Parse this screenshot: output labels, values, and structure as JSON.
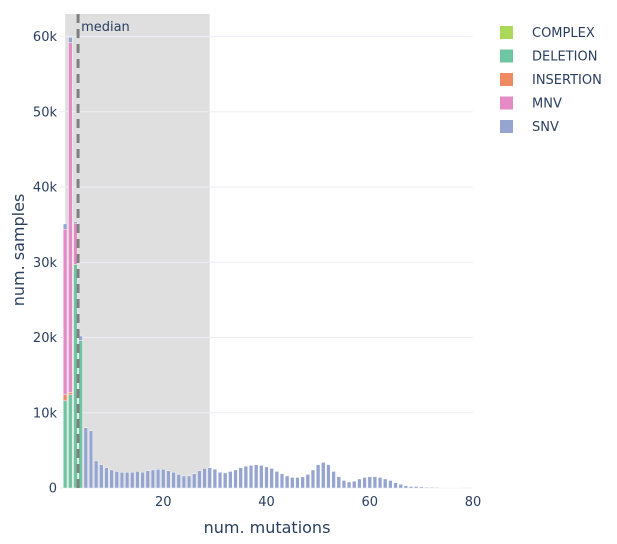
{
  "chart_data": {
    "type": "bar",
    "barmode": "stack",
    "xlabel": "num. mutations",
    "ylabel": "num. samples",
    "xlim": [
      0,
      80
    ],
    "ylim": [
      0,
      63000
    ],
    "x_ticks": [
      20,
      40,
      60,
      80
    ],
    "y_ticks": [
      0,
      10000,
      20000,
      30000,
      40000,
      50000,
      60000
    ],
    "y_tick_labels": [
      "0",
      "10k",
      "20k",
      "30k",
      "40k",
      "50k",
      "60k"
    ],
    "x_tick_labels": [
      "20",
      "40",
      "60",
      "80"
    ],
    "grid": true,
    "legend_position": "top-right",
    "shaded_region": {
      "x0": 1,
      "x1": 29
    },
    "median": {
      "x": 3.5,
      "label": "median"
    },
    "x": [
      1,
      2,
      3,
      4,
      5,
      6,
      7,
      8,
      9,
      10,
      11,
      12,
      13,
      14,
      15,
      16,
      17,
      18,
      19,
      20,
      21,
      22,
      23,
      24,
      25,
      26,
      27,
      28,
      29,
      30,
      31,
      32,
      33,
      34,
      35,
      36,
      37,
      38,
      39,
      40,
      41,
      42,
      43,
      44,
      45,
      46,
      47,
      48,
      49,
      50,
      51,
      52,
      53,
      54,
      55,
      56,
      57,
      58,
      59,
      60,
      61,
      62,
      63,
      64,
      65,
      66,
      67,
      68,
      69,
      70,
      71,
      72,
      73,
      74,
      75,
      76,
      77,
      78,
      79
    ],
    "series": [
      {
        "name": "SNV",
        "color": "#95a5d0",
        "values": [
          700,
          700,
          200,
          600,
          8000,
          7600,
          3600,
          3100,
          2700,
          2400,
          2200,
          2100,
          2100,
          2100,
          2200,
          2100,
          2300,
          2400,
          2500,
          2500,
          2300,
          2100,
          1800,
          1600,
          1600,
          1900,
          2300,
          2600,
          2700,
          2500,
          2100,
          2000,
          2200,
          2400,
          2700,
          2900,
          3000,
          3100,
          3000,
          2800,
          2600,
          2200,
          1900,
          1600,
          1400,
          1400,
          1500,
          1800,
          2400,
          3100,
          3400,
          3100,
          2200,
          1500,
          1000,
          800,
          900,
          1200,
          1400,
          1500,
          1500,
          1400,
          1200,
          1000,
          700,
          500,
          300,
          200,
          200,
          150,
          100,
          100,
          80,
          60,
          50,
          40,
          30,
          20,
          10
        ]
      },
      {
        "name": "MNV",
        "color": "#e48bc6",
        "values": [
          22000,
          46500,
          5500,
          0,
          0,
          0,
          0,
          0,
          0,
          0,
          0,
          0,
          0,
          0,
          0,
          0,
          0,
          0,
          0,
          0,
          0,
          0,
          0,
          0,
          0,
          0,
          0,
          0,
          0,
          0,
          0,
          0,
          0,
          0,
          0,
          0,
          0,
          0,
          0,
          0,
          0,
          0,
          0,
          0,
          0,
          0,
          0,
          0,
          0,
          0,
          0,
          0,
          0,
          0,
          0,
          0,
          0,
          0,
          0,
          0,
          0,
          0,
          0,
          0,
          0,
          0,
          0,
          0,
          0,
          0,
          0,
          0,
          0,
          0,
          0,
          0,
          0,
          0,
          0
        ]
      },
      {
        "name": "INSERTION",
        "color": "#ef8b63",
        "values": [
          800,
          300,
          0,
          0,
          0,
          0,
          0,
          0,
          0,
          0,
          0,
          0,
          0,
          0,
          0,
          0,
          0,
          0,
          0,
          0,
          0,
          0,
          0,
          0,
          0,
          0,
          0,
          0,
          0,
          0,
          0,
          0,
          0,
          0,
          0,
          0,
          0,
          0,
          0,
          0,
          0,
          0,
          0,
          0,
          0,
          0,
          0,
          0,
          0,
          0,
          0,
          0,
          0,
          0,
          0,
          0,
          0,
          0,
          0,
          0,
          0,
          0,
          0,
          0,
          0,
          0,
          0,
          0,
          0,
          0,
          0,
          0,
          0,
          0,
          0,
          0,
          0,
          0,
          0
        ]
      },
      {
        "name": "DELETION",
        "color": "#6dc6a1",
        "values": [
          11600,
          12400,
          29700,
          19600,
          0,
          0,
          0,
          0,
          0,
          0,
          0,
          0,
          0,
          0,
          0,
          0,
          0,
          0,
          0,
          0,
          0,
          0,
          0,
          0,
          0,
          0,
          0,
          0,
          0,
          0,
          0,
          0,
          0,
          0,
          0,
          0,
          0,
          0,
          0,
          0,
          0,
          0,
          0,
          0,
          0,
          0,
          0,
          0,
          0,
          0,
          0,
          0,
          0,
          0,
          0,
          0,
          0,
          0,
          0,
          0,
          0,
          0,
          0,
          0,
          0,
          0,
          0,
          0,
          0,
          0,
          0,
          0,
          0,
          0,
          0,
          0,
          0,
          0,
          0
        ]
      },
      {
        "name": "COMPLEX",
        "color": "#aad95a",
        "values": [
          0,
          0,
          0,
          0,
          0,
          0,
          0,
          0,
          0,
          0,
          0,
          0,
          0,
          0,
          0,
          0,
          0,
          0,
          0,
          0,
          0,
          0,
          0,
          0,
          0,
          0,
          0,
          0,
          0,
          0,
          0,
          0,
          0,
          0,
          0,
          0,
          0,
          0,
          0,
          0,
          0,
          0,
          0,
          0,
          0,
          0,
          0,
          0,
          0,
          0,
          0,
          0,
          0,
          0,
          0,
          0,
          0,
          0,
          0,
          0,
          0,
          0,
          0,
          0,
          0,
          0,
          0,
          0,
          0,
          0,
          0,
          0,
          0,
          0,
          0,
          0,
          0,
          0,
          0
        ]
      }
    ],
    "legend": [
      {
        "name": "COMPLEX",
        "color": "#aad95a"
      },
      {
        "name": "DELETION",
        "color": "#6dc6a1"
      },
      {
        "name": "INSERTION",
        "color": "#ef8b63"
      },
      {
        "name": "MNV",
        "color": "#e48bc6"
      },
      {
        "name": "SNV",
        "color": "#95a5d0"
      }
    ]
  }
}
